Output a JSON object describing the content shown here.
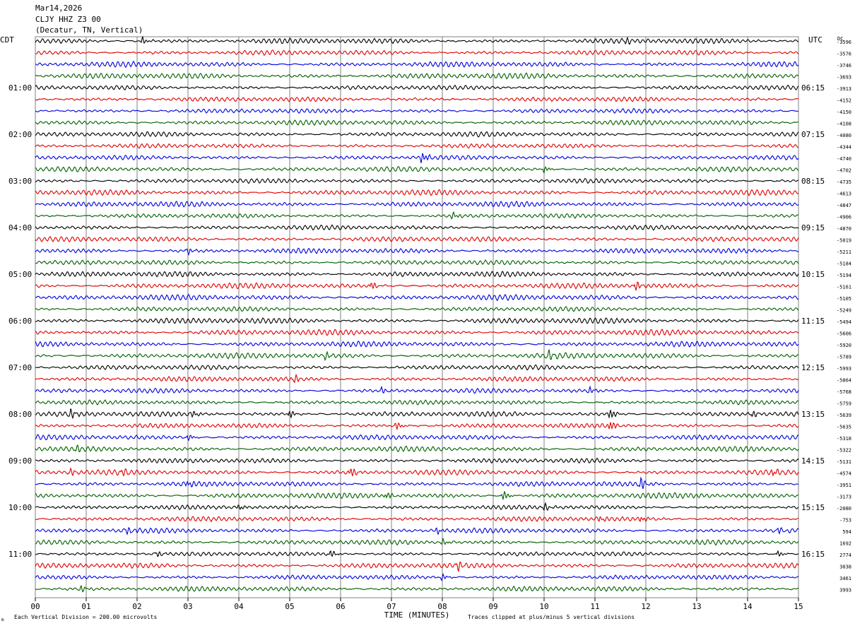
{
  "header": {
    "date": "Mar14,2026",
    "station": "CLJY HHZ Z3 00",
    "location": "(Decatur, TN, Vertical)"
  },
  "left_axis_title": "CDT",
  "right_axis_title": "UTC",
  "dc_label": "DC",
  "footer": {
    "scale": "Each Vertical Division =  200.00 microvolts",
    "clip": "Traces clipped at plus/minus 5 vertical divisions",
    "mark": "m"
  },
  "colors": {
    "trace_cycle": [
      "#000000",
      "#e00000",
      "#0000e0",
      "#006000"
    ],
    "grid": "#808080"
  },
  "chart_data": {
    "type": "line",
    "title": "CLJY HHZ Z3 00",
    "xlabel": "TIME (MINUTES)",
    "ylabel": "",
    "x_ticks": [
      "00",
      "01",
      "02",
      "03",
      "04",
      "05",
      "06",
      "07",
      "08",
      "09",
      "10",
      "11",
      "12",
      "13",
      "14",
      "15"
    ],
    "xlim": [
      0,
      15
    ],
    "left_hour_labels": [
      {
        "row": 4,
        "label": "01:00"
      },
      {
        "row": 8,
        "label": "02:00"
      },
      {
        "row": 12,
        "label": "03:00"
      },
      {
        "row": 16,
        "label": "04:00"
      },
      {
        "row": 20,
        "label": "05:00"
      },
      {
        "row": 24,
        "label": "06:00"
      },
      {
        "row": 28,
        "label": "07:00"
      },
      {
        "row": 32,
        "label": "08:00"
      },
      {
        "row": 36,
        "label": "09:00"
      },
      {
        "row": 40,
        "label": "10:00"
      },
      {
        "row": 44,
        "label": "11:00"
      }
    ],
    "right_hour_labels": [
      {
        "row": 4,
        "label": "06:15"
      },
      {
        "row": 8,
        "label": "07:15"
      },
      {
        "row": 12,
        "label": "08:15"
      },
      {
        "row": 16,
        "label": "09:15"
      },
      {
        "row": 20,
        "label": "10:15"
      },
      {
        "row": 24,
        "label": "11:15"
      },
      {
        "row": 28,
        "label": "12:15"
      },
      {
        "row": 32,
        "label": "13:15"
      },
      {
        "row": 36,
        "label": "14:15"
      },
      {
        "row": 40,
        "label": "15:15"
      },
      {
        "row": 44,
        "label": "16:15"
      }
    ],
    "dc_offsets": [
      "-3596",
      "-3576",
      "-3746",
      "-3693",
      "-3913",
      "-4152",
      "-4150",
      "-4108",
      "-4080",
      "-4344",
      "-4740",
      "-4702",
      "-4735",
      "-4613",
      "-4847",
      "-4906",
      "-4870",
      "-5019",
      "-5211",
      "-5184",
      "-5194",
      "-5161",
      "-5105",
      "-5249",
      "-5494",
      "-5606",
      "-5920",
      "-5789",
      "-5993",
      "-5864",
      "-5768",
      "-5759",
      "-5639",
      "-5635",
      "-5318",
      "-5322",
      "-5131",
      "-4574",
      "-3951",
      "-3173",
      "-2080",
      "-753",
      "594",
      "1692",
      "2774",
      "3038",
      "3461",
      "3993"
    ],
    "events": [
      {
        "row": 0,
        "t": 2.1,
        "amp": 1.6
      },
      {
        "row": 0,
        "t": 11.6,
        "amp": 1.3
      },
      {
        "row": 10,
        "t": 7.6,
        "amp": 2.6
      },
      {
        "row": 11,
        "t": 10.0,
        "amp": 1.4
      },
      {
        "row": 15,
        "t": 8.2,
        "amp": 1.6
      },
      {
        "row": 18,
        "t": 3.0,
        "amp": 1.3
      },
      {
        "row": 21,
        "t": 6.6,
        "amp": 1.8
      },
      {
        "row": 21,
        "t": 11.8,
        "amp": 2.0
      },
      {
        "row": 27,
        "t": 5.7,
        "amp": 1.6
      },
      {
        "row": 27,
        "t": 10.1,
        "amp": 1.8
      },
      {
        "row": 29,
        "t": 5.1,
        "amp": 1.4
      },
      {
        "row": 30,
        "t": 6.8,
        "amp": 1.3
      },
      {
        "row": 30,
        "t": 10.9,
        "amp": 1.3
      },
      {
        "row": 32,
        "t": 0.7,
        "amp": 2.0
      },
      {
        "row": 32,
        "t": 3.1,
        "amp": 1.5
      },
      {
        "row": 32,
        "t": 5.0,
        "amp": 1.8
      },
      {
        "row": 32,
        "t": 11.3,
        "amp": 2.5
      },
      {
        "row": 32,
        "t": 14.1,
        "amp": 1.5
      },
      {
        "row": 33,
        "t": 7.1,
        "amp": 1.8
      },
      {
        "row": 33,
        "t": 11.3,
        "amp": 2.4
      },
      {
        "row": 34,
        "t": 3.0,
        "amp": 1.4
      },
      {
        "row": 35,
        "t": 0.8,
        "amp": 1.3
      },
      {
        "row": 37,
        "t": 0.7,
        "amp": 1.4
      },
      {
        "row": 37,
        "t": 1.7,
        "amp": 1.4
      },
      {
        "row": 37,
        "t": 6.2,
        "amp": 2.4
      },
      {
        "row": 37,
        "t": 14.5,
        "amp": 1.5
      },
      {
        "row": 38,
        "t": 3.0,
        "amp": 1.4
      },
      {
        "row": 38,
        "t": 11.9,
        "amp": 2.6
      },
      {
        "row": 39,
        "t": 6.9,
        "amp": 1.6
      },
      {
        "row": 39,
        "t": 9.2,
        "amp": 2.2
      },
      {
        "row": 40,
        "t": 4.0,
        "amp": 1.3
      },
      {
        "row": 40,
        "t": 10.0,
        "amp": 1.6
      },
      {
        "row": 41,
        "t": 11.1,
        "amp": 1.3
      },
      {
        "row": 41,
        "t": 11.9,
        "amp": 1.4
      },
      {
        "row": 42,
        "t": 1.8,
        "amp": 1.3
      },
      {
        "row": 42,
        "t": 7.9,
        "amp": 1.4
      },
      {
        "row": 42,
        "t": 14.6,
        "amp": 1.3
      },
      {
        "row": 43,
        "t": 8.0,
        "amp": 1.5
      },
      {
        "row": 44,
        "t": 2.4,
        "amp": 1.3
      },
      {
        "row": 44,
        "t": 5.8,
        "amp": 1.6
      },
      {
        "row": 44,
        "t": 14.6,
        "amp": 1.3
      },
      {
        "row": 45,
        "t": 8.3,
        "amp": 2.0
      },
      {
        "row": 46,
        "t": 8.0,
        "amp": 1.5
      },
      {
        "row": 47,
        "t": 0.9,
        "amp": 1.4
      }
    ]
  }
}
